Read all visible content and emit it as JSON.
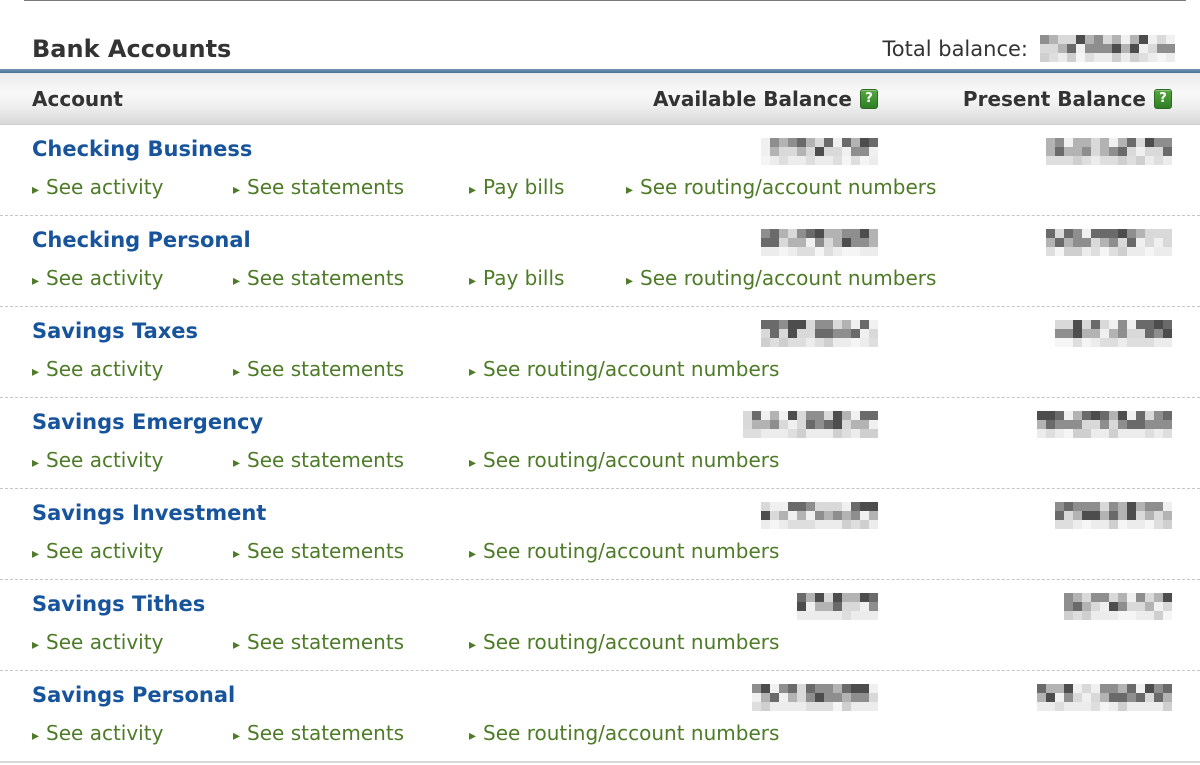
{
  "theme": {
    "accent_blue": "#47709a",
    "accent_blue_light": "#7397b6",
    "account_blue": "#17549b",
    "link_green": "#4e7b27",
    "help_green": "#3e9a35",
    "header_text": "#333333"
  },
  "header": {
    "title": "Bank Accounts",
    "total_balance_label": "Total balance:",
    "total_balance_redacted": true,
    "total_balance_redacted_cells": 15
  },
  "table": {
    "columns": {
      "account": "Account",
      "available": "Available Balance",
      "present": "Present Balance"
    },
    "help_glyph": "?",
    "link_arrow": "▸",
    "rows": [
      {
        "name": "Checking Business",
        "links": [
          "See activity",
          "See statements",
          "Pay bills",
          "See routing/account numbers"
        ],
        "available_redacted": true,
        "present_redacted": true,
        "available_redacted_cells": 13,
        "present_redacted_cells": 14
      },
      {
        "name": "Checking Personal",
        "links": [
          "See activity",
          "See statements",
          "Pay bills",
          "See routing/account numbers"
        ],
        "available_redacted": true,
        "present_redacted": true,
        "available_redacted_cells": 13,
        "present_redacted_cells": 14
      },
      {
        "name": "Savings Taxes",
        "links": [
          "See activity",
          "See statements",
          "See routing/account numbers"
        ],
        "available_redacted": true,
        "present_redacted": true,
        "available_redacted_cells": 13,
        "present_redacted_cells": 13
      },
      {
        "name": "Savings Emergency",
        "links": [
          "See activity",
          "See statements",
          "See routing/account numbers"
        ],
        "available_redacted": true,
        "present_redacted": true,
        "available_redacted_cells": 15,
        "present_redacted_cells": 15
      },
      {
        "name": "Savings Investment",
        "links": [
          "See activity",
          "See statements",
          "See routing/account numbers"
        ],
        "available_redacted": true,
        "present_redacted": true,
        "available_redacted_cells": 13,
        "present_redacted_cells": 13
      },
      {
        "name": "Savings Tithes",
        "links": [
          "See activity",
          "See statements",
          "See routing/account numbers"
        ],
        "available_redacted": true,
        "present_redacted": true,
        "available_redacted_cells": 9,
        "present_redacted_cells": 12
      },
      {
        "name": "Savings Personal",
        "links": [
          "See activity",
          "See statements",
          "See routing/account numbers"
        ],
        "available_redacted": true,
        "present_redacted": true,
        "available_redacted_cells": 14,
        "present_redacted_cells": 15
      }
    ]
  }
}
